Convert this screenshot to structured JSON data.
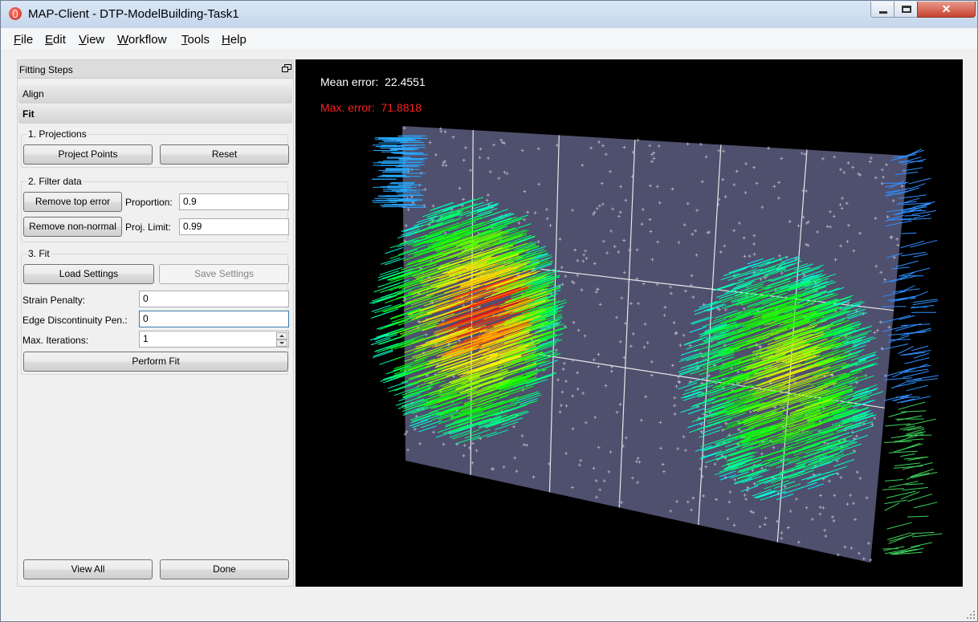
{
  "window": {
    "title": "MAP-Client - DTP-ModelBuilding-Task1"
  },
  "menu": [
    {
      "mnemonic": "F",
      "rest": "ile"
    },
    {
      "mnemonic": "E",
      "rest": "dit"
    },
    {
      "mnemonic": "V",
      "rest": "iew"
    },
    {
      "mnemonic": "W",
      "rest": "orkflow"
    },
    {
      "mnemonic": "T",
      "rest": "ools"
    },
    {
      "mnemonic": "H",
      "rest": "elp"
    }
  ],
  "panel": {
    "title": "Fitting Steps",
    "tabs": [
      "Align",
      "Fit"
    ],
    "projections": {
      "title": "1. Projections",
      "project_points": "Project Points",
      "reset": "Reset"
    },
    "filter": {
      "title": "2. Filter data",
      "remove_top_error": "Remove top error",
      "proportion_label": "Proportion:",
      "proportion_value": "0.9",
      "remove_non_normal": "Remove non-normal",
      "proj_limit_label": "Proj. Limit:",
      "proj_limit_value": "0.99"
    },
    "fit": {
      "title": "3. Fit",
      "load_settings": "Load Settings",
      "save_settings": "Save Settings",
      "strain_penalty_label": "Strain Penalty:",
      "strain_penalty_value": "0",
      "edge_discontinuity_label": "Edge Discontinuity Pen.:",
      "edge_discontinuity_value": "0",
      "max_iterations_label": "Max. Iterations:",
      "max_iterations_value": "1",
      "perform_fit": "Perform Fit"
    },
    "view_all": "View All",
    "done": "Done"
  },
  "viewport": {
    "mean_error_label": "Mean error:",
    "mean_error_value": "22.4551",
    "max_error_label": "Max. error:",
    "max_error_value": "71.8818",
    "colors": {
      "background": "#000000",
      "mesh": "#4f4f6e",
      "mean_text": "#ffffff",
      "max_text": "#ff2020"
    }
  }
}
